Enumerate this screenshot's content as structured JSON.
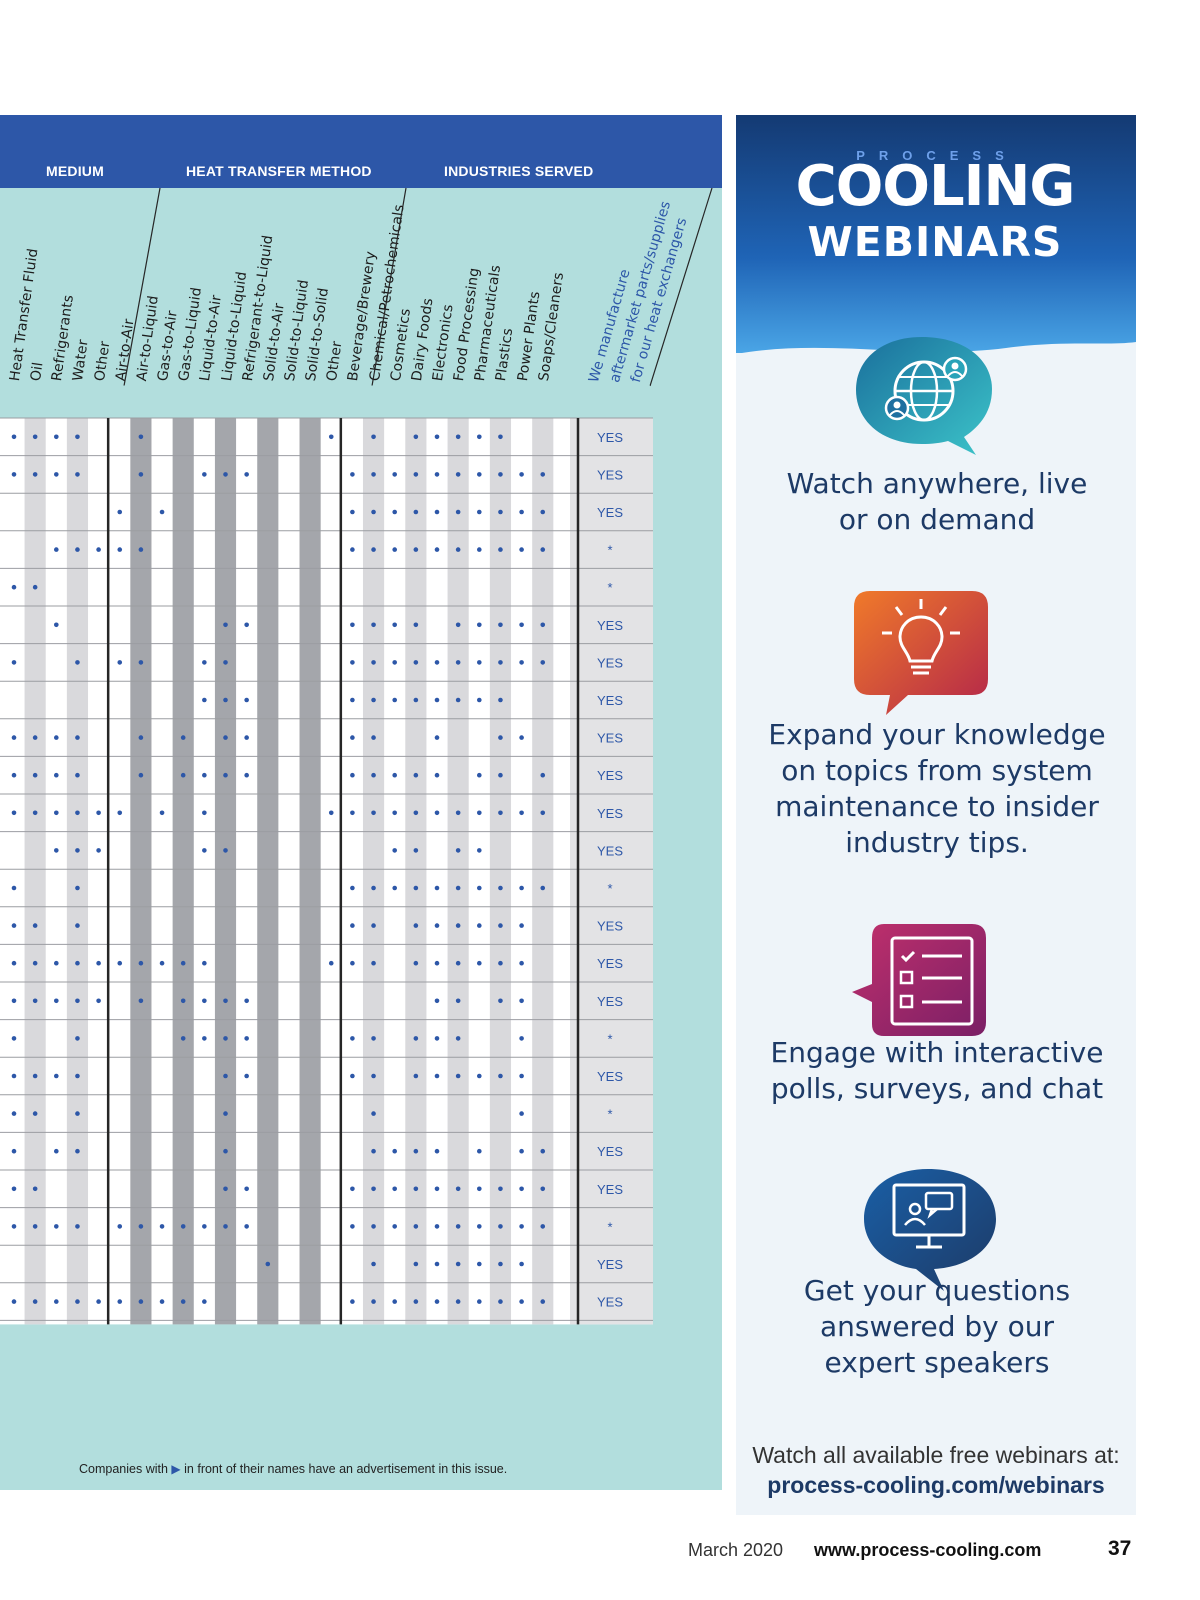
{
  "table": {
    "groups": {
      "medium": "MEDIUM",
      "method": "HEAT TRANSFER METHOD",
      "industries": "INDUSTRIES SERVED"
    },
    "columns": [
      "Heat Transfer Fluid",
      "Oil",
      "Refrigerants",
      "Water",
      "Other",
      "Air-to-Air",
      "Air-to-Liquid",
      "Gas-to-Air",
      "Gas-to-Liquid",
      "Liquid-to-Air",
      "Liquid-to-Liquid",
      "Refrigerant-to-Liquid",
      "Solid-to-Air",
      "Solid-to-Liquid",
      "Solid-to-Solid",
      "Other",
      "Beverage/Brewery",
      "Chemical/Petrochemicals",
      "Cosmetics",
      "Dairy Foods",
      "Electronics",
      "Food Processing",
      "Pharmaceuticals",
      "Plastics",
      "Power Plants",
      "Soaps/Cleaners"
    ],
    "aftermarket_label": [
      "We manufacture",
      "aftermarket parts/supplies",
      "for our heat exchangers"
    ],
    "rows": [
      {
        "dots": [
          1,
          1,
          1,
          1,
          0,
          0,
          1,
          0,
          0,
          0,
          0,
          0,
          0,
          0,
          0,
          1,
          0,
          1,
          0,
          1,
          1,
          1,
          1,
          1,
          0,
          0
        ],
        "answer": "YES"
      },
      {
        "dots": [
          1,
          1,
          1,
          1,
          0,
          0,
          1,
          0,
          0,
          1,
          1,
          1,
          0,
          0,
          0,
          0,
          1,
          1,
          1,
          1,
          1,
          1,
          1,
          1,
          1,
          1
        ],
        "answer": "YES"
      },
      {
        "dots": [
          0,
          0,
          0,
          0,
          0,
          1,
          0,
          1,
          0,
          0,
          0,
          0,
          0,
          0,
          0,
          0,
          1,
          1,
          1,
          1,
          1,
          1,
          1,
          1,
          1,
          1
        ],
        "answer": "YES"
      },
      {
        "dots": [
          0,
          0,
          1,
          1,
          1,
          1,
          1,
          0,
          0,
          0,
          0,
          0,
          0,
          0,
          0,
          0,
          1,
          1,
          1,
          1,
          1,
          1,
          1,
          1,
          1,
          1
        ],
        "answer": "*"
      },
      {
        "dots": [
          1,
          1,
          0,
          0,
          0,
          0,
          0,
          0,
          0,
          0,
          0,
          0,
          0,
          0,
          0,
          0,
          0,
          0,
          0,
          0,
          0,
          0,
          0,
          0,
          0,
          0
        ],
        "answer": "*"
      },
      {
        "dots": [
          0,
          0,
          1,
          0,
          0,
          0,
          0,
          0,
          0,
          0,
          1,
          1,
          0,
          0,
          0,
          0,
          1,
          1,
          1,
          1,
          0,
          1,
          1,
          1,
          1,
          1
        ],
        "answer": "YES"
      },
      {
        "dots": [
          1,
          0,
          0,
          1,
          0,
          1,
          1,
          0,
          0,
          1,
          1,
          0,
          0,
          0,
          0,
          0,
          1,
          1,
          1,
          1,
          1,
          1,
          1,
          1,
          1,
          1
        ],
        "answer": "YES"
      },
      {
        "dots": [
          0,
          0,
          0,
          0,
          0,
          0,
          0,
          0,
          0,
          1,
          1,
          1,
          0,
          0,
          0,
          0,
          1,
          1,
          1,
          1,
          1,
          1,
          1,
          1,
          0,
          0
        ],
        "answer": "YES"
      },
      {
        "dots": [
          1,
          1,
          1,
          1,
          0,
          0,
          1,
          0,
          1,
          0,
          1,
          1,
          0,
          0,
          0,
          0,
          1,
          1,
          0,
          0,
          1,
          0,
          0,
          1,
          1,
          0
        ],
        "answer": "YES"
      },
      {
        "dots": [
          1,
          1,
          1,
          1,
          0,
          0,
          1,
          0,
          1,
          1,
          1,
          1,
          0,
          0,
          0,
          0,
          1,
          1,
          1,
          1,
          1,
          0,
          1,
          1,
          0,
          1
        ],
        "answer": "YES"
      },
      {
        "dots": [
          1,
          1,
          1,
          1,
          1,
          1,
          0,
          1,
          0,
          1,
          0,
          0,
          0,
          0,
          0,
          1,
          1,
          1,
          1,
          1,
          1,
          1,
          1,
          1,
          1,
          1
        ],
        "answer": "YES"
      },
      {
        "dots": [
          0,
          0,
          1,
          1,
          1,
          0,
          0,
          0,
          0,
          1,
          1,
          0,
          0,
          0,
          0,
          0,
          0,
          0,
          1,
          1,
          0,
          1,
          1,
          0,
          0,
          0
        ],
        "answer": "YES"
      },
      {
        "dots": [
          1,
          0,
          0,
          1,
          0,
          0,
          0,
          0,
          0,
          0,
          0,
          0,
          0,
          0,
          0,
          0,
          1,
          1,
          1,
          1,
          1,
          1,
          1,
          1,
          1,
          1
        ],
        "answer": "*"
      },
      {
        "dots": [
          1,
          1,
          0,
          1,
          0,
          0,
          0,
          0,
          0,
          0,
          0,
          0,
          0,
          0,
          0,
          0,
          1,
          1,
          0,
          1,
          1,
          1,
          1,
          1,
          1,
          0
        ],
        "answer": "YES"
      },
      {
        "dots": [
          1,
          1,
          1,
          1,
          1,
          1,
          1,
          1,
          1,
          1,
          0,
          0,
          0,
          0,
          0,
          1,
          1,
          1,
          0,
          1,
          1,
          1,
          1,
          1,
          1,
          0
        ],
        "answer": "YES"
      },
      {
        "dots": [
          1,
          1,
          1,
          1,
          1,
          0,
          1,
          0,
          1,
          1,
          1,
          1,
          0,
          0,
          0,
          0,
          0,
          0,
          0,
          0,
          1,
          1,
          0,
          1,
          1,
          0
        ],
        "answer": "YES"
      },
      {
        "dots": [
          1,
          0,
          0,
          1,
          0,
          0,
          0,
          0,
          1,
          1,
          1,
          1,
          0,
          0,
          0,
          0,
          1,
          1,
          0,
          1,
          1,
          1,
          0,
          0,
          1,
          0
        ],
        "answer": "*"
      },
      {
        "dots": [
          1,
          1,
          1,
          1,
          0,
          0,
          0,
          0,
          0,
          0,
          1,
          1,
          0,
          0,
          0,
          0,
          1,
          1,
          0,
          1,
          1,
          1,
          1,
          1,
          1,
          0
        ],
        "answer": "YES"
      },
      {
        "dots": [
          1,
          1,
          0,
          1,
          0,
          0,
          0,
          0,
          0,
          0,
          1,
          0,
          0,
          0,
          0,
          0,
          0,
          1,
          0,
          0,
          0,
          0,
          0,
          0,
          1,
          0
        ],
        "answer": "*"
      },
      {
        "dots": [
          1,
          0,
          1,
          1,
          0,
          0,
          0,
          0,
          0,
          0,
          1,
          0,
          0,
          0,
          0,
          0,
          0,
          1,
          1,
          1,
          1,
          0,
          1,
          0,
          1,
          1
        ],
        "answer": "YES"
      },
      {
        "dots": [
          1,
          1,
          0,
          0,
          0,
          0,
          0,
          0,
          0,
          0,
          1,
          1,
          0,
          0,
          0,
          0,
          1,
          1,
          1,
          1,
          1,
          1,
          1,
          1,
          1,
          1
        ],
        "answer": "YES"
      },
      {
        "dots": [
          1,
          1,
          1,
          1,
          0,
          1,
          1,
          1,
          1,
          1,
          1,
          1,
          0,
          0,
          0,
          0,
          1,
          1,
          1,
          1,
          1,
          1,
          1,
          1,
          1,
          1
        ],
        "answer": "*"
      },
      {
        "dots": [
          0,
          0,
          0,
          0,
          0,
          0,
          0,
          0,
          0,
          0,
          0,
          0,
          1,
          0,
          0,
          0,
          0,
          1,
          0,
          1,
          1,
          1,
          1,
          1,
          1,
          0
        ],
        "answer": "YES"
      },
      {
        "dots": [
          1,
          1,
          1,
          1,
          1,
          1,
          1,
          1,
          1,
          1,
          0,
          0,
          0,
          0,
          0,
          0,
          1,
          1,
          1,
          1,
          1,
          1,
          1,
          1,
          1,
          1
        ],
        "answer": "YES"
      }
    ],
    "footnote_before": "Companies with",
    "footnote_marker": "▶",
    "footnote_after": "in front of their names have an advertisement in this issue."
  },
  "promo": {
    "brand_small": "PROCESS",
    "brand_main": "COOLING",
    "brand_sub": "WEBINARS",
    "features": [
      {
        "icon": "globe-speech-bubble-icon",
        "lines": [
          "Watch anywhere, live",
          "or on demand"
        ]
      },
      {
        "icon": "lightbulb-speech-bubble-icon",
        "lines": [
          "Expand your knowledge",
          "on topics from system",
          "maintenance to insider",
          "industry tips."
        ]
      },
      {
        "icon": "checklist-speech-bubble-icon",
        "lines": [
          "Engage with interactive",
          "polls, surveys, and chat"
        ]
      },
      {
        "icon": "monitor-chat-speech-bubble-icon",
        "lines": [
          "Get your questions",
          "answered by our",
          "expert speakers"
        ]
      }
    ],
    "watch_text": "Watch all available free webinars at:",
    "watch_url": "process-cooling.com/webinars"
  },
  "footer": {
    "date": "March 2020",
    "site": "www.process-cooling.com",
    "page": "37"
  }
}
